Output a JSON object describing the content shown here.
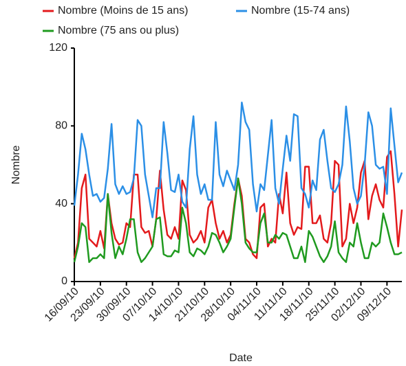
{
  "chart_data": {
    "type": "line",
    "x_label": "Date",
    "y_label": "Nombre",
    "x": [
      "16/09/10",
      "17/09/10",
      "18/09/10",
      "19/09/10",
      "20/09/10",
      "21/09/10",
      "22/09/10",
      "23/09/10",
      "24/09/10",
      "25/09/10",
      "26/09/10",
      "27/09/10",
      "28/09/10",
      "29/09/10",
      "30/09/10",
      "01/10/10",
      "02/10/10",
      "03/10/10",
      "04/10/10",
      "05/10/10",
      "06/10/10",
      "07/10/10",
      "08/10/10",
      "09/10/10",
      "10/10/10",
      "11/10/10",
      "12/10/10",
      "13/10/10",
      "14/10/10",
      "15/10/10",
      "16/10/10",
      "17/10/10",
      "18/10/10",
      "19/10/10",
      "20/10/10",
      "21/10/10",
      "22/10/10",
      "23/10/10",
      "24/10/10",
      "25/10/10",
      "26/10/10",
      "27/10/10",
      "28/10/10",
      "29/10/10",
      "30/10/10",
      "31/10/10",
      "01/11/10",
      "02/11/10",
      "03/11/10",
      "04/11/10",
      "05/11/10",
      "06/11/10",
      "07/11/10",
      "08/11/10",
      "09/11/10",
      "10/11/10",
      "11/11/10",
      "12/11/10",
      "13/11/10",
      "14/11/10",
      "15/11/10",
      "16/11/10",
      "17/11/10",
      "18/11/10",
      "19/11/10",
      "20/11/10",
      "21/11/10",
      "22/11/10",
      "23/11/10",
      "24/11/10",
      "25/11/10",
      "26/11/10",
      "27/11/10",
      "28/11/10",
      "29/11/10",
      "30/11/10",
      "01/12/10",
      "02/12/10",
      "03/12/10",
      "04/12/10",
      "05/12/10",
      "06/12/10",
      "07/12/10",
      "08/12/10",
      "09/12/10",
      "10/12/10",
      "11/12/10",
      "12/12/10",
      "13/12/10"
    ],
    "xticks": [
      "16/09/10",
      "23/09/10",
      "30/09/10",
      "07/10/10",
      "14/10/10",
      "21/10/10",
      "28/10/10",
      "04/11/10",
      "11/11/10",
      "18/11/10",
      "25/11/10",
      "02/12/10",
      "09/12/10"
    ],
    "ylim": [
      0,
      120
    ],
    "yticks": [
      0,
      40,
      80,
      120
    ],
    "series": [
      {
        "name": "Nombre (Moins de 15 ans)",
        "color": "#e31a1c",
        "values": [
          12,
          20,
          48,
          55,
          22,
          20,
          18,
          26,
          17,
          45,
          30,
          22,
          19,
          20,
          30,
          28,
          55,
          55,
          28,
          25,
          26,
          18,
          32,
          57,
          37,
          24,
          22,
          28,
          22,
          52,
          47,
          24,
          20,
          22,
          26,
          20,
          38,
          42,
          30,
          22,
          26,
          20,
          24,
          40,
          53,
          44,
          22,
          20,
          14,
          12,
          38,
          40,
          18,
          22,
          20,
          45,
          35,
          56,
          30,
          24,
          28,
          27,
          59,
          59,
          30,
          30,
          34,
          22,
          20,
          30,
          62,
          60,
          18,
          22,
          40,
          30,
          38,
          56,
          62,
          32,
          44,
          50,
          42,
          38,
          64,
          67,
          45,
          18,
          37
        ]
      },
      {
        "name": "Nombre (15-74 ans)",
        "color": "#2b8fe6",
        "values": [
          39,
          55,
          76,
          68,
          55,
          44,
          45,
          41,
          43,
          58,
          81,
          50,
          45,
          49,
          45,
          46,
          53,
          83,
          80,
          55,
          44,
          33,
          48,
          48,
          82,
          66,
          47,
          46,
          55,
          41,
          38,
          68,
          85,
          55,
          45,
          50,
          42,
          42,
          82,
          55,
          49,
          57,
          52,
          47,
          60,
          92,
          82,
          78,
          50,
          36,
          50,
          47,
          65,
          83,
          48,
          40,
          58,
          75,
          62,
          86,
          85,
          48,
          45,
          38,
          52,
          47,
          73,
          78,
          62,
          48,
          46,
          50,
          60,
          90,
          72,
          48,
          40,
          44,
          60,
          87,
          80,
          60,
          58,
          59,
          45,
          89,
          70,
          51,
          56
        ]
      },
      {
        "name": "Nombre (75 ans ou plus)",
        "color": "#1f9a1f",
        "values": [
          10,
          18,
          30,
          28,
          10,
          12,
          12,
          14,
          12,
          45,
          25,
          12,
          18,
          14,
          22,
          32,
          32,
          15,
          10,
          12,
          15,
          18,
          32,
          33,
          14,
          13,
          13,
          16,
          15,
          38,
          30,
          15,
          13,
          17,
          16,
          14,
          18,
          25,
          24,
          20,
          15,
          18,
          22,
          38,
          53,
          40,
          20,
          17,
          15,
          15,
          30,
          35,
          20,
          20,
          24,
          22,
          25,
          24,
          18,
          12,
          12,
          18,
          10,
          26,
          23,
          18,
          13,
          10,
          13,
          18,
          31,
          15,
          12,
          10,
          20,
          18,
          30,
          20,
          12,
          12,
          20,
          18,
          20,
          35,
          28,
          20,
          14,
          14,
          15
        ]
      }
    ]
  }
}
